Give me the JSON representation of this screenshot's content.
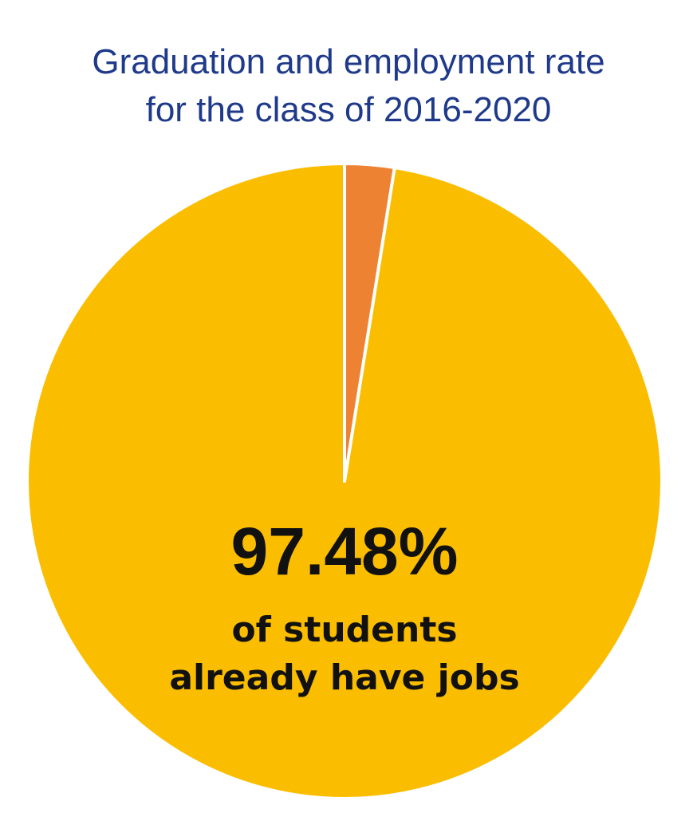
{
  "title_lines": [
    "Graduation and employment rate",
    "for the class of 2016-2020"
  ],
  "colors": {
    "title": "#1f3a8a",
    "employed": "#fbbd00",
    "not_employed": "#ee8233",
    "separator": "#ffffff",
    "label_text": "#111111"
  },
  "chart_data": {
    "type": "pie",
    "title": "Graduation and employment rate for the class of 2016-2020",
    "slices": [
      {
        "label": "",
        "value": 97.48,
        "color": "#fbbd00"
      },
      {
        "label": "",
        "value": 2.52,
        "color": "#ee8233"
      }
    ],
    "start_angle": "12 o'clock, small slice first, clockwise",
    "annotation": {
      "value_text": "97.48%",
      "line1": "of students",
      "line2": "already have jobs"
    }
  }
}
